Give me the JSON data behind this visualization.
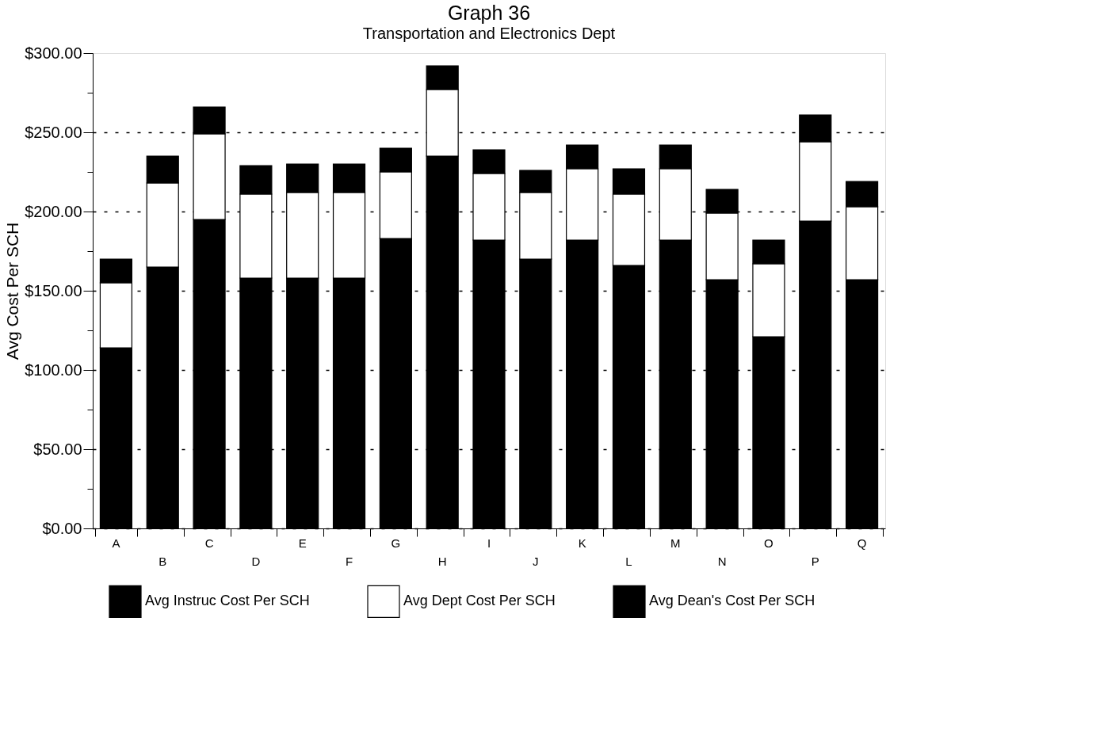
{
  "chart_data": {
    "type": "bar",
    "title": "Graph 36",
    "subtitle": "Transportation and Electronics Dept",
    "ylabel": "Avg Cost Per SCH",
    "categories": [
      "A",
      "B",
      "C",
      "D",
      "E",
      "F",
      "G",
      "H",
      "I",
      "J",
      "K",
      "L",
      "M",
      "N",
      "O",
      "P",
      "Q"
    ],
    "stacked": true,
    "series": [
      {
        "name": "Avg Instruc Cost Per SCH",
        "color": "#000000",
        "values": [
          114,
          165,
          195,
          158,
          158,
          158,
          183,
          235,
          182,
          170,
          182,
          166,
          182,
          157,
          121,
          194,
          157
        ]
      },
      {
        "name": "Avg Dept Cost Per SCH",
        "color": "#ffffff",
        "values": [
          41,
          53,
          54,
          53,
          54,
          54,
          42,
          42,
          42,
          42,
          45,
          45,
          45,
          42,
          46,
          50,
          46
        ]
      },
      {
        "name": "Avg Dean's Cost Per SCH",
        "color": "#000000",
        "values": [
          15,
          17,
          17,
          18,
          18,
          18,
          15,
          15,
          15,
          14,
          15,
          16,
          15,
          15,
          15,
          17,
          16
        ]
      }
    ],
    "ylim": [
      0,
      300
    ],
    "yticks": [
      {
        "value": 0,
        "label": "$0.00"
      },
      {
        "value": 25,
        "label": null
      },
      {
        "value": 50,
        "label": "$50.00"
      },
      {
        "value": 75,
        "label": null
      },
      {
        "value": 100,
        "label": "$100.00"
      },
      {
        "value": 125,
        "label": null
      },
      {
        "value": 150,
        "label": "$150.00"
      },
      {
        "value": 175,
        "label": null
      },
      {
        "value": 200,
        "label": "$200.00"
      },
      {
        "value": 225,
        "label": null
      },
      {
        "value": 250,
        "label": "$250.00"
      },
      {
        "value": 275,
        "label": null
      },
      {
        "value": 300,
        "label": "$300.00"
      }
    ],
    "grid": "y",
    "legend": "bottom"
  }
}
